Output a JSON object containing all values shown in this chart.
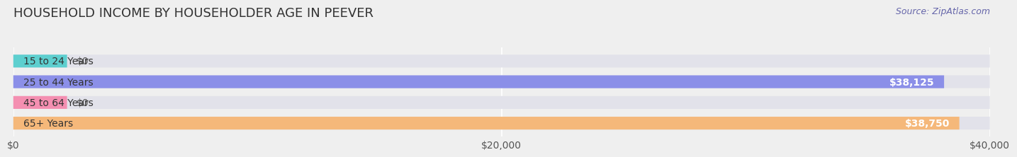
{
  "title": "HOUSEHOLD INCOME BY HOUSEHOLDER AGE IN PEEVER",
  "source": "Source: ZipAtlas.com",
  "categories": [
    "15 to 24 Years",
    "25 to 44 Years",
    "45 to 64 Years",
    "65+ Years"
  ],
  "values": [
    0,
    38125,
    0,
    38750
  ],
  "bar_colors": [
    "#5dcfcf",
    "#8b8fe8",
    "#f48fb1",
    "#f5b87a"
  ],
  "xlim": [
    0,
    40000
  ],
  "xticks": [
    0,
    20000,
    40000
  ],
  "xtick_labels": [
    "$0",
    "$20,000",
    "$40,000"
  ],
  "bg_color": "#efefef",
  "bar_bg_color": "#e2e2ea",
  "title_fontsize": 13,
  "label_fontsize": 10,
  "value_fontsize": 10,
  "source_fontsize": 9
}
